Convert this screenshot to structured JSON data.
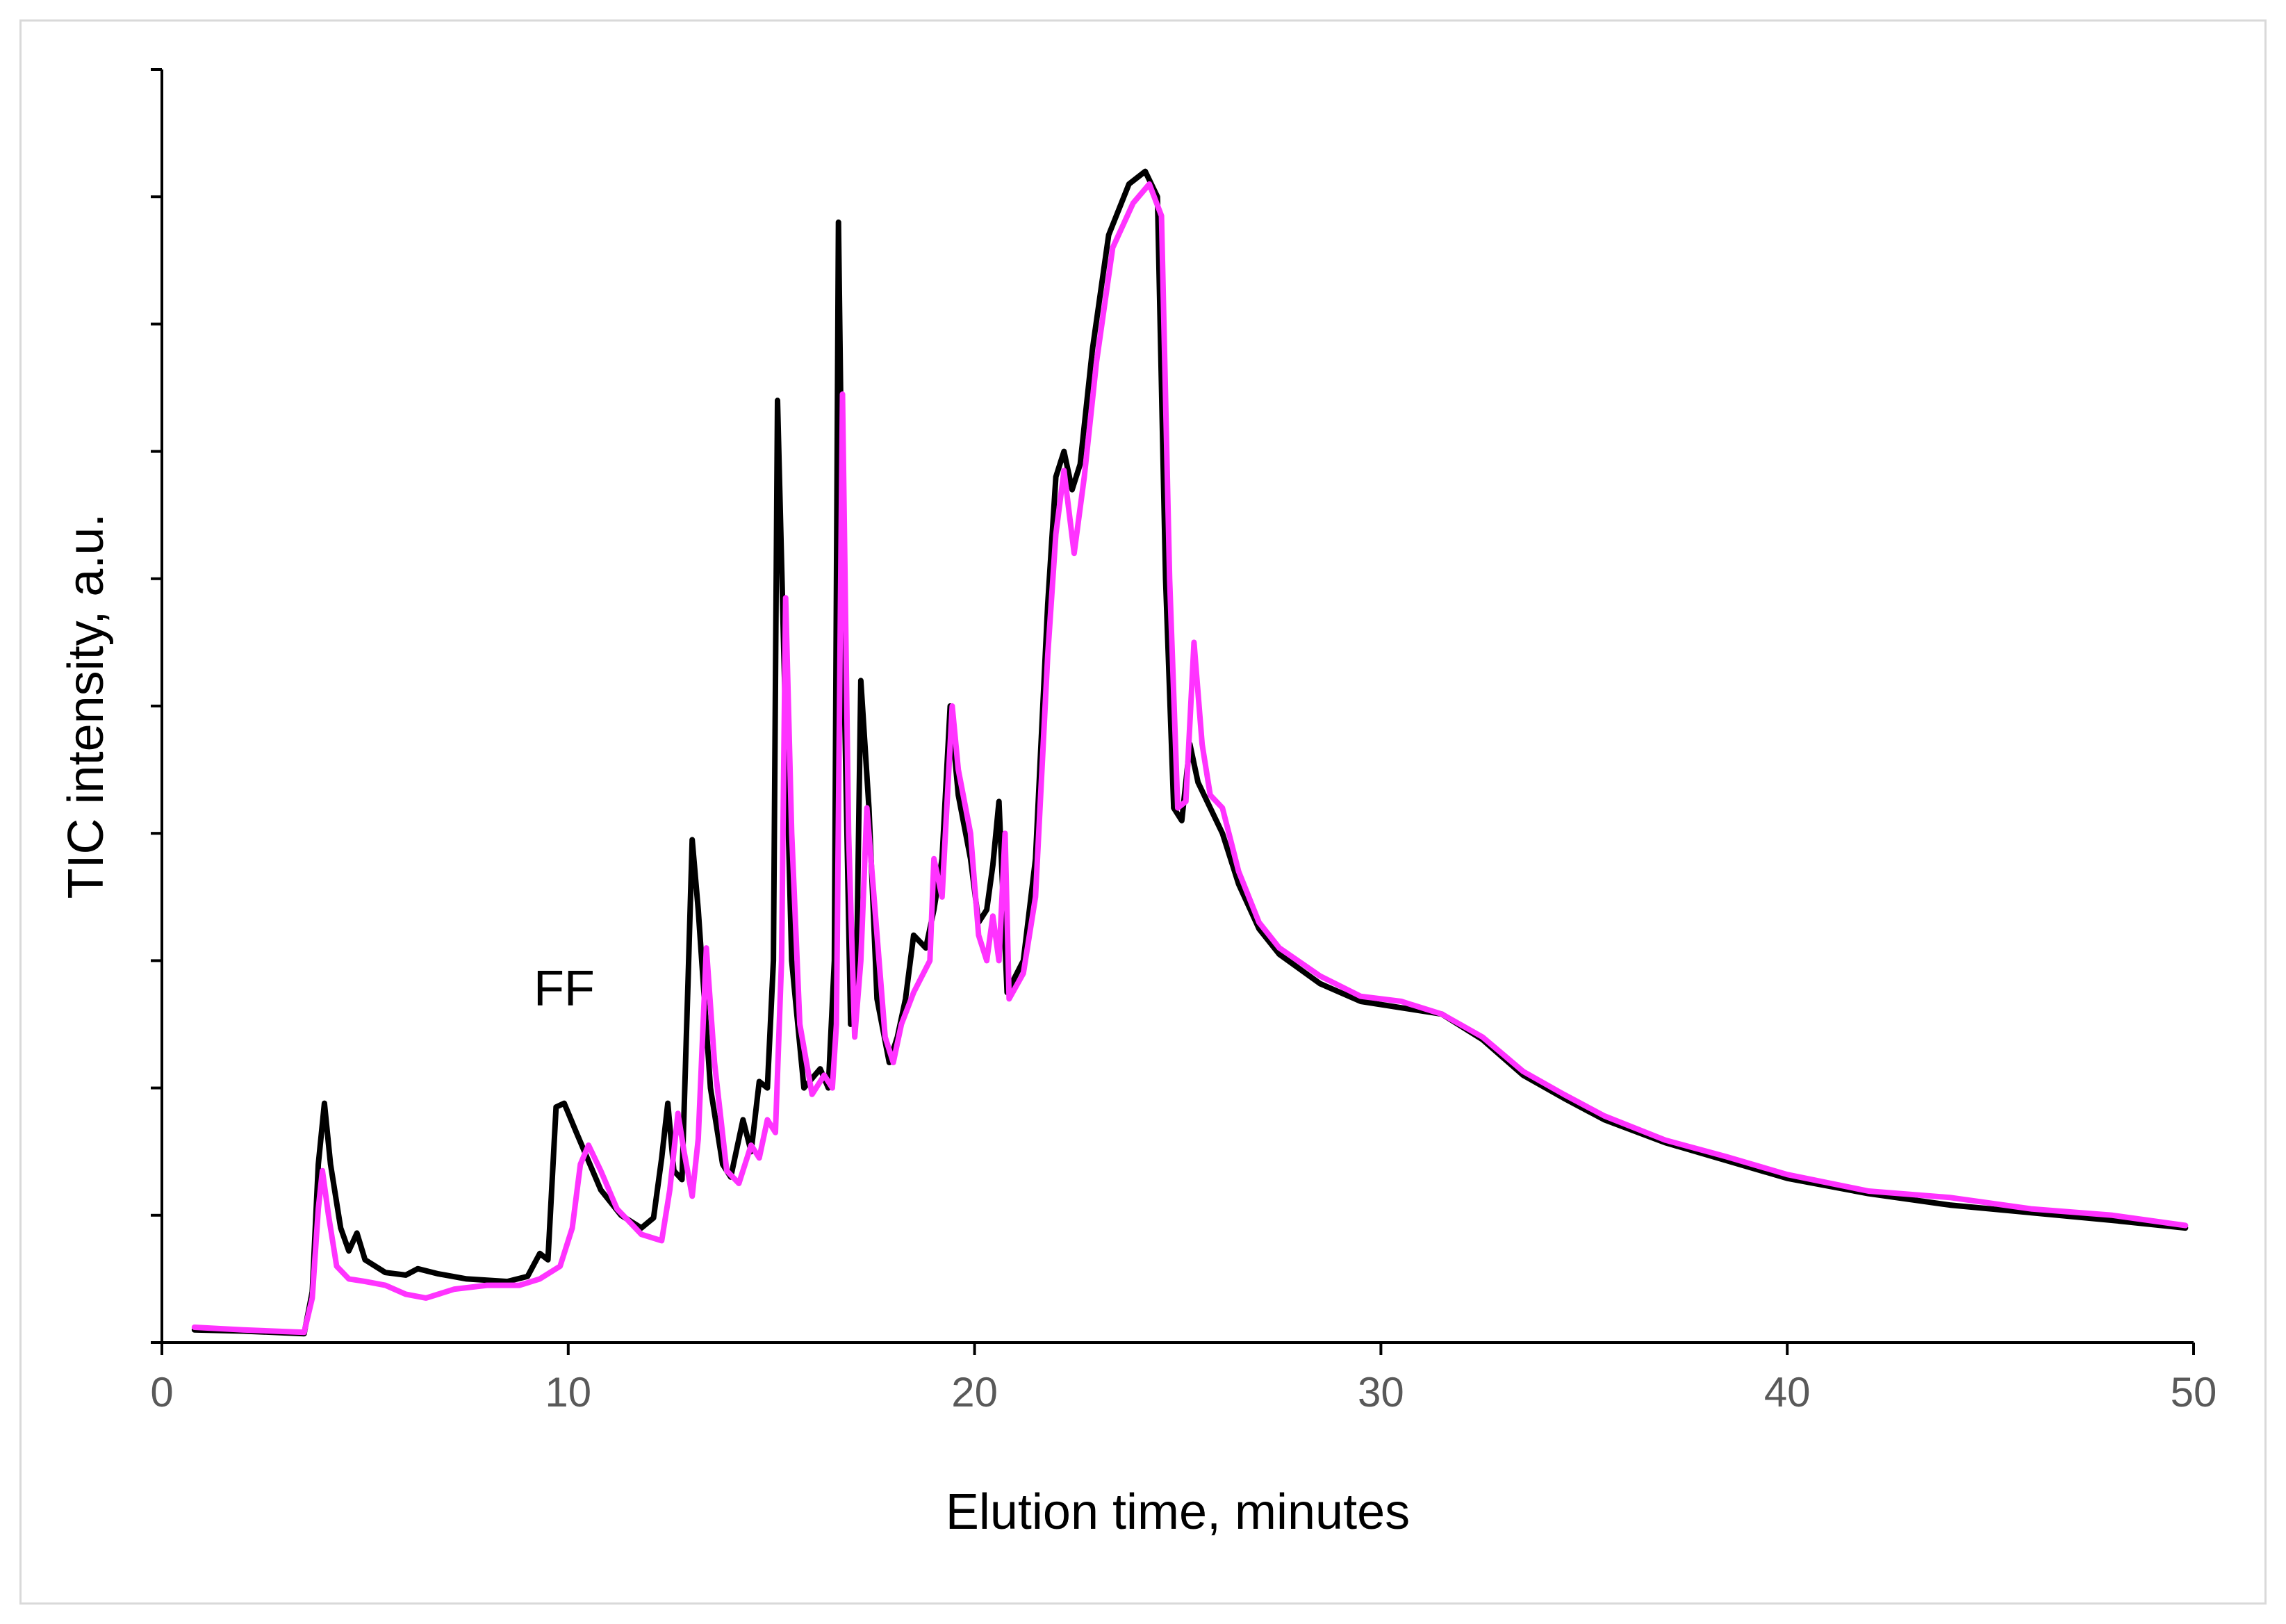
{
  "chart_data": {
    "type": "line",
    "title": "",
    "xlabel": "Elution time, minutes",
    "ylabel": "TIC intensity,  a.u.",
    "xlim": [
      0,
      50
    ],
    "ylim": [
      0,
      100
    ],
    "x_ticks": [
      0,
      10,
      20,
      30,
      40,
      50
    ],
    "y_tick_marks": [
      0,
      10,
      20,
      30,
      40,
      50,
      60,
      70,
      80,
      90,
      100
    ],
    "y_tick_labels_shown": false,
    "grid": false,
    "legend": "none",
    "annotations": [
      {
        "text": "FF",
        "x": 9.9,
        "y": 26.5
      }
    ],
    "series": [
      {
        "name": "black trace",
        "color": "#000000",
        "points": [
          [
            0.8,
            1.0
          ],
          [
            2.0,
            0.9
          ],
          [
            3.5,
            0.7
          ],
          [
            3.7,
            4.0
          ],
          [
            3.85,
            14.0
          ],
          [
            4.0,
            18.8
          ],
          [
            4.15,
            14.0
          ],
          [
            4.4,
            9.0
          ],
          [
            4.6,
            7.2
          ],
          [
            4.8,
            8.6
          ],
          [
            5.0,
            6.5
          ],
          [
            5.5,
            5.5
          ],
          [
            6.0,
            5.3
          ],
          [
            6.3,
            5.8
          ],
          [
            6.8,
            5.4
          ],
          [
            7.5,
            5.0
          ],
          [
            8.5,
            4.8
          ],
          [
            9.0,
            5.2
          ],
          [
            9.3,
            7.0
          ],
          [
            9.5,
            6.5
          ],
          [
            9.7,
            18.5
          ],
          [
            9.9,
            18.8
          ],
          [
            10.2,
            16.5
          ],
          [
            10.8,
            12.0
          ],
          [
            11.3,
            10.0
          ],
          [
            11.8,
            9.0
          ],
          [
            12.1,
            9.8
          ],
          [
            12.3,
            14.5
          ],
          [
            12.45,
            18.8
          ],
          [
            12.6,
            13.5
          ],
          [
            12.8,
            12.8
          ],
          [
            12.95,
            28.5
          ],
          [
            13.05,
            39.5
          ],
          [
            13.2,
            34.0
          ],
          [
            13.5,
            20.0
          ],
          [
            13.8,
            14.0
          ],
          [
            14.0,
            13.0
          ],
          [
            14.3,
            17.5
          ],
          [
            14.5,
            15.0
          ],
          [
            14.7,
            20.5
          ],
          [
            14.9,
            20.0
          ],
          [
            15.05,
            30.0
          ],
          [
            15.15,
            74.0
          ],
          [
            15.3,
            55.0
          ],
          [
            15.5,
            30.0
          ],
          [
            15.8,
            20.0
          ],
          [
            16.2,
            21.5
          ],
          [
            16.4,
            20.0
          ],
          [
            16.55,
            30.0
          ],
          [
            16.65,
            88.0
          ],
          [
            16.8,
            50.0
          ],
          [
            16.95,
            25.0
          ],
          [
            17.1,
            30.0
          ],
          [
            17.2,
            52.0
          ],
          [
            17.4,
            42.0
          ],
          [
            17.6,
            27.0
          ],
          [
            17.9,
            22.0
          ],
          [
            18.1,
            24.0
          ],
          [
            18.3,
            27.0
          ],
          [
            18.5,
            32.0
          ],
          [
            18.8,
            31.0
          ],
          [
            19.0,
            34.0
          ],
          [
            19.2,
            38.0
          ],
          [
            19.4,
            50.0
          ],
          [
            19.6,
            43.0
          ],
          [
            19.9,
            38.0
          ],
          [
            20.1,
            33.0
          ],
          [
            20.3,
            34.0
          ],
          [
            20.45,
            37.5
          ],
          [
            20.6,
            42.5
          ],
          [
            20.8,
            27.5
          ],
          [
            21.2,
            30.0
          ],
          [
            21.5,
            38.0
          ],
          [
            21.8,
            58.0
          ],
          [
            22.0,
            68.0
          ],
          [
            22.2,
            70.0
          ],
          [
            22.4,
            67.0
          ],
          [
            22.6,
            69.0
          ],
          [
            22.9,
            78.0
          ],
          [
            23.3,
            87.0
          ],
          [
            23.8,
            91.0
          ],
          [
            24.2,
            92.0
          ],
          [
            24.5,
            90.0
          ],
          [
            24.7,
            60.0
          ],
          [
            24.9,
            42.0
          ],
          [
            25.1,
            41.0
          ],
          [
            25.3,
            47.0
          ],
          [
            25.5,
            44.0
          ],
          [
            25.8,
            42.0
          ],
          [
            26.1,
            40.0
          ],
          [
            26.5,
            36.0
          ],
          [
            27.0,
            32.5
          ],
          [
            27.5,
            30.5
          ],
          [
            28.5,
            28.2
          ],
          [
            29.5,
            26.8
          ],
          [
            30.5,
            26.3
          ],
          [
            31.5,
            25.8
          ],
          [
            32.5,
            23.8
          ],
          [
            33.5,
            21.0
          ],
          [
            34.5,
            19.2
          ],
          [
            35.5,
            17.5
          ],
          [
            37.0,
            15.7
          ],
          [
            38.5,
            14.3
          ],
          [
            40.0,
            12.9
          ],
          [
            42.0,
            11.7
          ],
          [
            44.0,
            10.8
          ],
          [
            46.0,
            10.2
          ],
          [
            48.0,
            9.6
          ],
          [
            49.8,
            9.0
          ]
        ]
      },
      {
        "name": "magenta trace",
        "color": "#ff33ff",
        "points": [
          [
            0.8,
            1.2
          ],
          [
            2.0,
            1.0
          ],
          [
            3.5,
            0.8
          ],
          [
            3.7,
            3.5
          ],
          [
            3.85,
            10.5
          ],
          [
            3.95,
            13.5
          ],
          [
            4.1,
            10.0
          ],
          [
            4.3,
            6.0
          ],
          [
            4.6,
            5.0
          ],
          [
            5.0,
            4.8
          ],
          [
            5.5,
            4.5
          ],
          [
            6.0,
            3.8
          ],
          [
            6.5,
            3.5
          ],
          [
            7.2,
            4.2
          ],
          [
            8.0,
            4.5
          ],
          [
            8.8,
            4.5
          ],
          [
            9.3,
            5.0
          ],
          [
            9.8,
            6.0
          ],
          [
            10.1,
            9.0
          ],
          [
            10.3,
            14.0
          ],
          [
            10.5,
            15.5
          ],
          [
            10.8,
            13.5
          ],
          [
            11.2,
            10.5
          ],
          [
            11.8,
            8.5
          ],
          [
            12.3,
            8.0
          ],
          [
            12.5,
            12.0
          ],
          [
            12.7,
            18.0
          ],
          [
            12.85,
            15.0
          ],
          [
            13.05,
            11.5
          ],
          [
            13.2,
            16.0
          ],
          [
            13.4,
            31.0
          ],
          [
            13.6,
            22.0
          ],
          [
            13.9,
            13.5
          ],
          [
            14.2,
            12.5
          ],
          [
            14.5,
            15.5
          ],
          [
            14.7,
            14.5
          ],
          [
            14.9,
            17.5
          ],
          [
            15.1,
            16.5
          ],
          [
            15.25,
            30.0
          ],
          [
            15.35,
            58.5
          ],
          [
            15.5,
            40.0
          ],
          [
            15.7,
            25.0
          ],
          [
            16.0,
            19.5
          ],
          [
            16.3,
            21.0
          ],
          [
            16.5,
            20.0
          ],
          [
            16.6,
            25.0
          ],
          [
            16.75,
            74.5
          ],
          [
            16.9,
            40.0
          ],
          [
            17.05,
            24.0
          ],
          [
            17.2,
            30.0
          ],
          [
            17.35,
            42.0
          ],
          [
            17.5,
            36.0
          ],
          [
            17.8,
            24.0
          ],
          [
            18.0,
            22.0
          ],
          [
            18.2,
            25.0
          ],
          [
            18.5,
            27.5
          ],
          [
            18.9,
            30.0
          ],
          [
            19.0,
            38.0
          ],
          [
            19.2,
            35.0
          ],
          [
            19.45,
            50.0
          ],
          [
            19.6,
            45.0
          ],
          [
            19.9,
            40.0
          ],
          [
            20.1,
            32.0
          ],
          [
            20.3,
            30.0
          ],
          [
            20.45,
            33.5
          ],
          [
            20.6,
            30.0
          ],
          [
            20.75,
            40.0
          ],
          [
            20.85,
            27.0
          ],
          [
            21.2,
            29.0
          ],
          [
            21.5,
            35.0
          ],
          [
            21.8,
            54.0
          ],
          [
            22.0,
            63.5
          ],
          [
            22.2,
            68.5
          ],
          [
            22.45,
            62.0
          ],
          [
            22.7,
            68.0
          ],
          [
            23.0,
            77.0
          ],
          [
            23.4,
            86.0
          ],
          [
            23.9,
            89.5
          ],
          [
            24.3,
            91.0
          ],
          [
            24.6,
            88.5
          ],
          [
            24.8,
            60.0
          ],
          [
            25.0,
            42.0
          ],
          [
            25.2,
            42.5
          ],
          [
            25.4,
            55.0
          ],
          [
            25.6,
            47.0
          ],
          [
            25.8,
            43.0
          ],
          [
            26.1,
            42.0
          ],
          [
            26.5,
            37.0
          ],
          [
            27.0,
            33.0
          ],
          [
            27.5,
            31.0
          ],
          [
            28.5,
            28.8
          ],
          [
            29.5,
            27.2
          ],
          [
            30.5,
            26.8
          ],
          [
            31.5,
            25.8
          ],
          [
            32.5,
            24.0
          ],
          [
            33.5,
            21.3
          ],
          [
            34.5,
            19.5
          ],
          [
            35.5,
            17.8
          ],
          [
            37.0,
            15.9
          ],
          [
            38.5,
            14.6
          ],
          [
            40.0,
            13.2
          ],
          [
            42.0,
            11.9
          ],
          [
            44.0,
            11.4
          ],
          [
            46.0,
            10.5
          ],
          [
            48.0,
            10.0
          ],
          [
            49.8,
            9.2
          ]
        ]
      }
    ]
  }
}
